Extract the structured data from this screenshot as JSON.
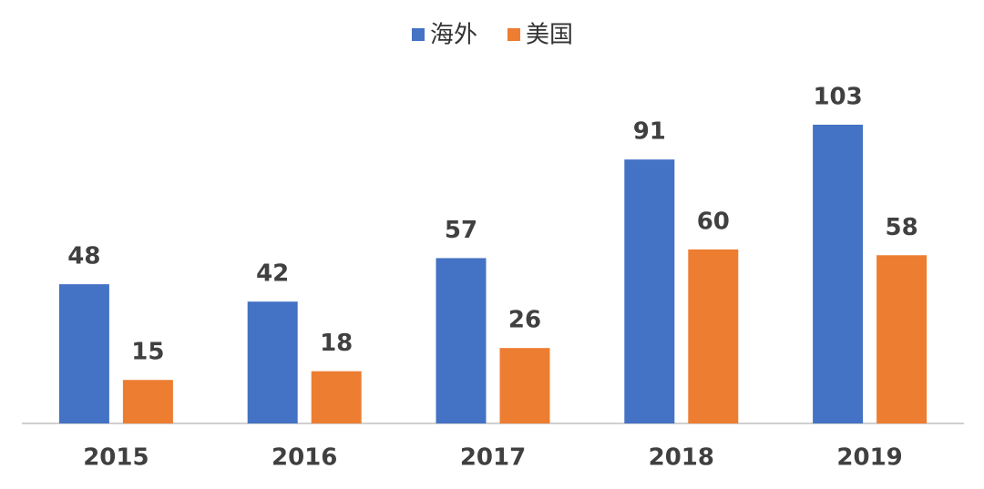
{
  "chart_data": {
    "type": "bar",
    "categories": [
      "2015",
      "2016",
      "2017",
      "2018",
      "2019"
    ],
    "series": [
      {
        "name": "海外",
        "color": "#4472c4",
        "values": [
          48,
          42,
          57,
          91,
          103
        ]
      },
      {
        "name": "美国",
        "color": "#ed7d31",
        "values": [
          15,
          18,
          26,
          60,
          58
        ]
      }
    ],
    "legend": "top"
  }
}
